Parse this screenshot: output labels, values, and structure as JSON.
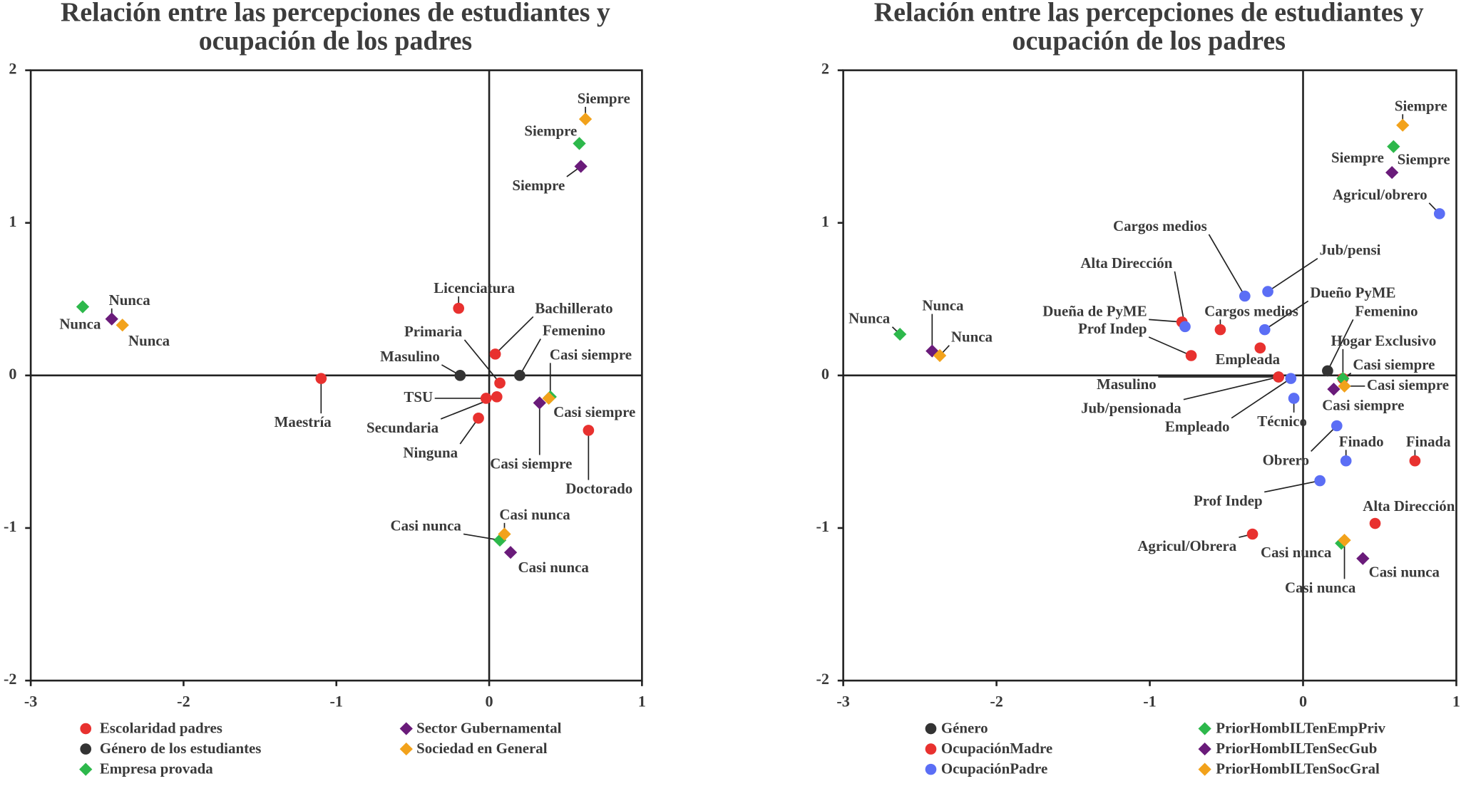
{
  "chart_data": [
    {
      "type": "scatter",
      "title": [
        "Relación entre las percepciones de estudiantes y",
        "ocupación de los padres"
      ],
      "xlim": [
        -3,
        1
      ],
      "ylim": [
        -2,
        2
      ],
      "xticks": [
        -3,
        -2,
        -1,
        0,
        1
      ],
      "yticks": [
        -2,
        -1,
        0,
        1,
        2
      ],
      "series": [
        {
          "name": "Escolaridad padres",
          "color": "#e8312f",
          "marker": "circle",
          "x": [
            -0.2,
            -1.1,
            0.04,
            0.07,
            -0.02,
            0.05,
            -0.07,
            0.65
          ],
          "y": [
            0.44,
            -0.02,
            0.14,
            -0.05,
            -0.15,
            -0.14,
            -0.28,
            -0.36
          ],
          "labels": [
            "Licenciatura",
            "Maestría",
            "Bachillerato",
            "Primaria",
            "TSU",
            "Secundaria",
            "Ninguna",
            "Doctorado"
          ]
        },
        {
          "name": "Género de los estudiantes",
          "color": "#333333",
          "marker": "circle",
          "x": [
            -0.19,
            0.2
          ],
          "y": [
            0,
            0
          ],
          "labels": [
            "Masulino",
            "Femenino"
          ]
        },
        {
          "name": "Empresa provada",
          "color": "#2db84b",
          "marker": "diamond",
          "x": [
            -2.66,
            0.59,
            0.4,
            0.07
          ],
          "y": [
            0.45,
            1.52,
            -0.14,
            -1.08
          ],
          "labels": [
            "Nunca",
            "Siempre",
            "Casi siempre",
            "Casi nunca"
          ]
        },
        {
          "name": "Sector Gubernamental",
          "color": "#6a1b7a",
          "marker": "diamond",
          "x": [
            -2.47,
            0.6,
            0.33,
            0.14
          ],
          "y": [
            0.37,
            1.37,
            -0.18,
            -1.16
          ],
          "labels": [
            "Nunca",
            "Siempre",
            "Casi siempre",
            "Casi nunca"
          ]
        },
        {
          "name": "Sociedad en General",
          "color": "#f2a21b",
          "marker": "diamond",
          "x": [
            -2.4,
            0.63,
            0.39,
            0.1
          ],
          "y": [
            0.33,
            1.68,
            -0.15,
            -1.04
          ],
          "labels": [
            "Nunca",
            "Siempre",
            "Casi siempre",
            "Casi nunca"
          ]
        }
      ]
    },
    {
      "type": "scatter",
      "title": [
        "Relación entre las percepciones de estudiantes y",
        "ocupación de los padres"
      ],
      "xlim": [
        -3,
        1
      ],
      "ylim": [
        -2,
        2
      ],
      "xticks": [
        -3,
        -2,
        -1,
        0,
        1
      ],
      "yticks": [
        -2,
        -1,
        0,
        1,
        2
      ],
      "series": [
        {
          "name": "Género",
          "color": "#333333",
          "marker": "circle",
          "x": [
            -0.16,
            0.16
          ],
          "y": [
            -0.01,
            0.03
          ],
          "labels": [
            "Masulino",
            "Femenino"
          ]
        },
        {
          "name": "OcupaciónMadre",
          "color": "#e8312f",
          "marker": "circle",
          "x": [
            -0.79,
            -0.54,
            -0.73,
            -0.28,
            -0.16,
            0.26,
            0.73,
            0.47,
            -0.33
          ],
          "y": [
            0.35,
            0.3,
            0.13,
            0.18,
            -0.01,
            -0.02,
            -0.56,
            -0.97,
            -1.04
          ],
          "labels": [
            "Dueña de PyME",
            "Cargos medios",
            "Prof Indep",
            "Empleada",
            "Jub/pensionada",
            "Hogar Exclusivo",
            "Finada",
            "Alta Dirección",
            "Agricul/Obrera"
          ]
        },
        {
          "name": "OcupaciónPadre",
          "color": "#5b6ef5",
          "marker": "circle",
          "x": [
            0.89,
            -0.38,
            -0.23,
            -0.77,
            -0.25,
            -0.08,
            -0.06,
            0.22,
            0.28,
            0.11
          ],
          "y": [
            1.06,
            0.52,
            0.55,
            0.32,
            0.3,
            -0.02,
            -0.15,
            -0.33,
            -0.56,
            -0.69
          ],
          "labels": [
            "Agricul/obrero",
            "Cargos medios",
            "Jub/pensi",
            "Alta Dirección",
            "Dueño PyME",
            "Empleado",
            "Técnico",
            "Obrero",
            "Finado",
            "Prof Indep"
          ]
        },
        {
          "name": "PriorHombILTenEmpPriv",
          "color": "#2db84b",
          "marker": "diamond",
          "x": [
            -2.63,
            0.59,
            0.26,
            0.25
          ],
          "y": [
            0.27,
            1.5,
            -0.02,
            -1.1
          ],
          "labels": [
            "Nunca",
            "Siempre",
            "Casi siempre",
            "Casi nunca"
          ]
        },
        {
          "name": "PriorHombILTenSecGub",
          "color": "#6a1b7a",
          "marker": "diamond",
          "x": [
            -2.42,
            0.58,
            0.2,
            0.39
          ],
          "y": [
            0.16,
            1.33,
            -0.09,
            -1.2
          ],
          "labels": [
            "Nunca",
            "Siempre",
            "Casi siempre",
            "Casi nunca"
          ]
        },
        {
          "name": "PriorHombILTenSocGral",
          "color": "#f2a21b",
          "marker": "diamond",
          "x": [
            -2.37,
            0.65,
            0.27,
            0.27
          ],
          "y": [
            0.13,
            1.64,
            -0.07,
            -1.08
          ],
          "labels": [
            "Nunca",
            "Siempre",
            "Casi siempre",
            "Casi nunca"
          ]
        }
      ]
    }
  ]
}
